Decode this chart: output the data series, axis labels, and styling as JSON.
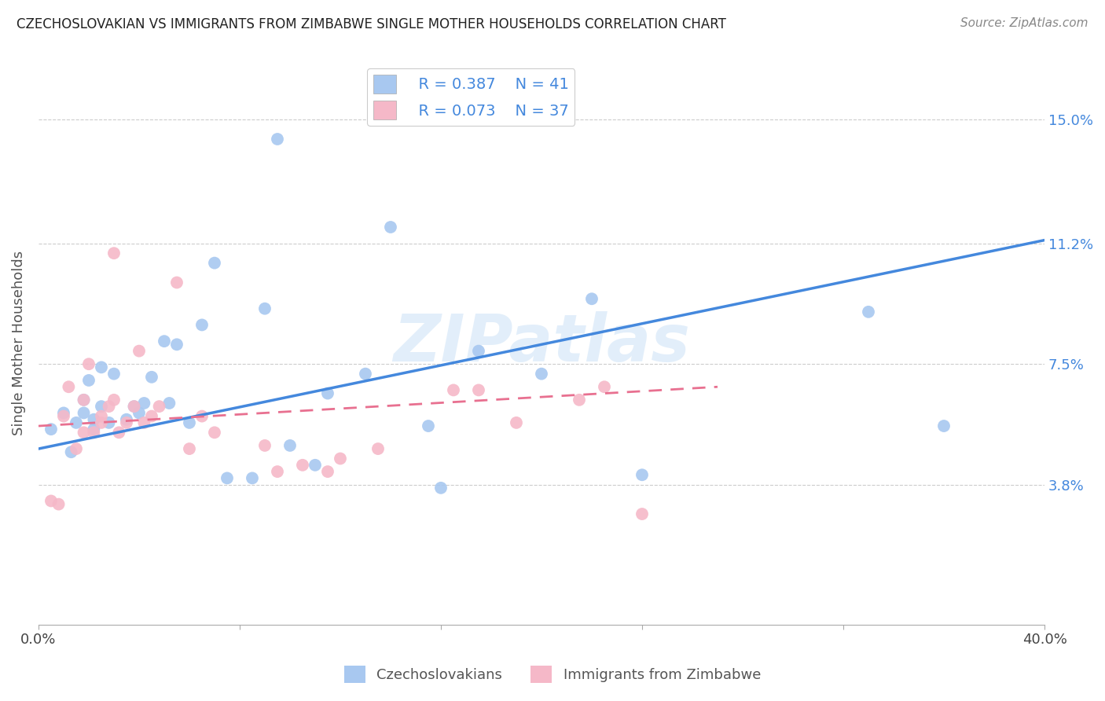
{
  "title": "CZECHOSLOVAKIAN VS IMMIGRANTS FROM ZIMBABWE SINGLE MOTHER HOUSEHOLDS CORRELATION CHART",
  "source": "Source: ZipAtlas.com",
  "ylabel": "Single Mother Households",
  "xmin": 0.0,
  "xmax": 0.4,
  "ymin": -0.005,
  "ymax": 0.168,
  "yticks": [
    0.038,
    0.075,
    0.112,
    0.15
  ],
  "ytick_labels": [
    "3.8%",
    "7.5%",
    "11.2%",
    "15.0%"
  ],
  "xticks": [
    0.0,
    0.08,
    0.16,
    0.24,
    0.32,
    0.4
  ],
  "xtick_labels": [
    "0.0%",
    "",
    "",
    "",
    "",
    "40.0%"
  ],
  "legend_1_r": "0.387",
  "legend_1_n": "41",
  "legend_2_r": "0.073",
  "legend_2_n": "37",
  "blue_color": "#a8c8f0",
  "pink_color": "#f5b8c8",
  "blue_line_color": "#4488dd",
  "pink_line_color": "#e87090",
  "watermark_color": "#d0e4f7",
  "blue_scatter_x": [
    0.005,
    0.01,
    0.013,
    0.015,
    0.018,
    0.018,
    0.02,
    0.022,
    0.022,
    0.025,
    0.025,
    0.028,
    0.03,
    0.035,
    0.038,
    0.04,
    0.042,
    0.045,
    0.05,
    0.052,
    0.055,
    0.06,
    0.065,
    0.07,
    0.075,
    0.085,
    0.09,
    0.095,
    0.1,
    0.11,
    0.115,
    0.13,
    0.14,
    0.155,
    0.16,
    0.175,
    0.2,
    0.22,
    0.24,
    0.33,
    0.36
  ],
  "blue_scatter_y": [
    0.055,
    0.06,
    0.048,
    0.057,
    0.06,
    0.064,
    0.07,
    0.055,
    0.058,
    0.062,
    0.074,
    0.057,
    0.072,
    0.058,
    0.062,
    0.06,
    0.063,
    0.071,
    0.082,
    0.063,
    0.081,
    0.057,
    0.087,
    0.106,
    0.04,
    0.04,
    0.092,
    0.144,
    0.05,
    0.044,
    0.066,
    0.072,
    0.117,
    0.056,
    0.037,
    0.079,
    0.072,
    0.095,
    0.041,
    0.091,
    0.056
  ],
  "pink_scatter_x": [
    0.005,
    0.008,
    0.01,
    0.012,
    0.015,
    0.018,
    0.018,
    0.02,
    0.022,
    0.025,
    0.025,
    0.028,
    0.03,
    0.03,
    0.032,
    0.035,
    0.038,
    0.04,
    0.042,
    0.045,
    0.048,
    0.055,
    0.06,
    0.065,
    0.07,
    0.09,
    0.095,
    0.105,
    0.115,
    0.12,
    0.135,
    0.165,
    0.175,
    0.19,
    0.215,
    0.225,
    0.24
  ],
  "pink_scatter_y": [
    0.033,
    0.032,
    0.059,
    0.068,
    0.049,
    0.054,
    0.064,
    0.075,
    0.054,
    0.057,
    0.059,
    0.062,
    0.064,
    0.109,
    0.054,
    0.057,
    0.062,
    0.079,
    0.057,
    0.059,
    0.062,
    0.1,
    0.049,
    0.059,
    0.054,
    0.05,
    0.042,
    0.044,
    0.042,
    0.046,
    0.049,
    0.067,
    0.067,
    0.057,
    0.064,
    0.068,
    0.029
  ],
  "blue_line_x0": 0.0,
  "blue_line_x1": 0.4,
  "blue_line_y0": 0.049,
  "blue_line_y1": 0.113,
  "pink_line_x0": 0.0,
  "pink_line_x1": 0.27,
  "pink_line_y0": 0.056,
  "pink_line_y1": 0.068,
  "background_color": "#ffffff",
  "grid_color": "#cccccc"
}
